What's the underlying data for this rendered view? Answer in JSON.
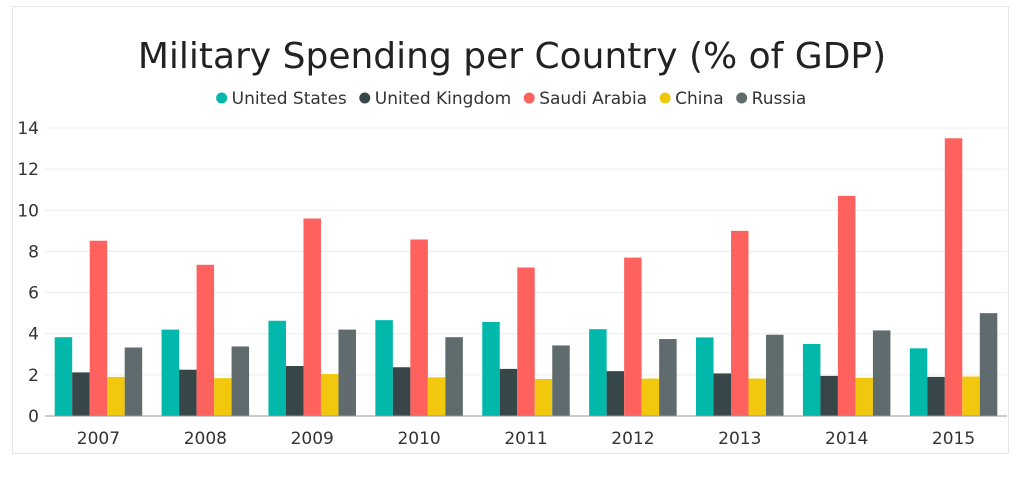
{
  "chart_data": {
    "type": "bar",
    "title": "Military Spending per Country (% of GDP)",
    "xlabel": "",
    "ylabel": "",
    "categories": [
      "2007",
      "2008",
      "2009",
      "2010",
      "2011",
      "2012",
      "2013",
      "2014",
      "2015"
    ],
    "ylim": [
      0,
      14
    ],
    "yticks": [
      0,
      2,
      4,
      6,
      8,
      10,
      12,
      14
    ],
    "grid": true,
    "legend_position": "top-center",
    "series": [
      {
        "name": "United States",
        "color": "#01B8AA",
        "values": [
          3.83,
          4.2,
          4.63,
          4.66,
          4.57,
          4.22,
          3.82,
          3.5,
          3.29
        ]
      },
      {
        "name": "United Kingdom",
        "color": "#374649",
        "values": [
          2.12,
          2.25,
          2.43,
          2.37,
          2.29,
          2.18,
          2.07,
          1.95,
          1.9
        ]
      },
      {
        "name": "Saudi Arabia",
        "color": "#FD625E",
        "values": [
          8.52,
          7.35,
          9.6,
          8.58,
          7.22,
          7.7,
          9.0,
          10.7,
          13.5
        ]
      },
      {
        "name": "China",
        "color": "#F2C80F",
        "values": [
          1.9,
          1.84,
          2.04,
          1.88,
          1.8,
          1.82,
          1.82,
          1.86,
          1.92
        ]
      },
      {
        "name": "Russia",
        "color": "#5F6B6D",
        "values": [
          3.33,
          3.38,
          4.2,
          3.83,
          3.43,
          3.74,
          3.95,
          4.16,
          5.0
        ]
      }
    ]
  }
}
